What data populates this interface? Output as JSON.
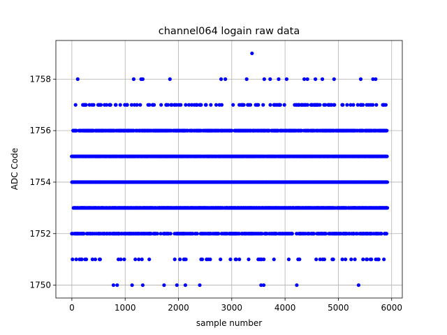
{
  "chart_data": {
    "type": "scatter",
    "title": "channel064 logain raw data",
    "xlabel": "sample number",
    "ylabel": "ADC Code",
    "xlim": [
      -300,
      6200
    ],
    "ylim": [
      1749.5,
      1759.5
    ],
    "xticks": [
      0,
      1000,
      2000,
      3000,
      4000,
      5000,
      6000
    ],
    "yticks": [
      1750,
      1752,
      1754,
      1756,
      1758
    ],
    "grid": true,
    "marker_color": "#0000ff",
    "x_range": [
      0,
      5920
    ],
    "series": [
      {
        "values": [
          {
            "y": 1754,
            "density": 1.0
          },
          {
            "y": 1755,
            "density": 0.85
          },
          {
            "y": 1753,
            "density": 0.75
          },
          {
            "y": 1756,
            "density": 0.6
          },
          {
            "y": 1752,
            "density": 0.4
          },
          {
            "y": 1757,
            "density": 0.15
          },
          {
            "y": 1751,
            "density": 0.08
          }
        ],
        "sparse_points": [
          {
            "x": 110,
            "y": 1758
          },
          {
            "x": 1160,
            "y": 1758
          },
          {
            "x": 1300,
            "y": 1758
          },
          {
            "x": 1330,
            "y": 1758
          },
          {
            "x": 1840,
            "y": 1758
          },
          {
            "x": 2800,
            "y": 1758
          },
          {
            "x": 2880,
            "y": 1758
          },
          {
            "x": 3280,
            "y": 1758
          },
          {
            "x": 3610,
            "y": 1758
          },
          {
            "x": 3720,
            "y": 1758
          },
          {
            "x": 3880,
            "y": 1758
          },
          {
            "x": 4030,
            "y": 1758
          },
          {
            "x": 4360,
            "y": 1758
          },
          {
            "x": 4420,
            "y": 1758
          },
          {
            "x": 4570,
            "y": 1758
          },
          {
            "x": 4700,
            "y": 1758
          },
          {
            "x": 4920,
            "y": 1758
          },
          {
            "x": 5420,
            "y": 1758
          },
          {
            "x": 5650,
            "y": 1758
          },
          {
            "x": 5700,
            "y": 1758
          },
          {
            "x": 3380,
            "y": 1759
          },
          {
            "x": 780,
            "y": 1750
          },
          {
            "x": 850,
            "y": 1750
          },
          {
            "x": 1130,
            "y": 1750
          },
          {
            "x": 1330,
            "y": 1750
          },
          {
            "x": 1730,
            "y": 1750
          },
          {
            "x": 1970,
            "y": 1750
          },
          {
            "x": 2130,
            "y": 1750
          },
          {
            "x": 2400,
            "y": 1750
          },
          {
            "x": 3550,
            "y": 1750
          },
          {
            "x": 3600,
            "y": 1750
          },
          {
            "x": 4220,
            "y": 1750
          },
          {
            "x": 5380,
            "y": 1750
          }
        ]
      }
    ]
  }
}
